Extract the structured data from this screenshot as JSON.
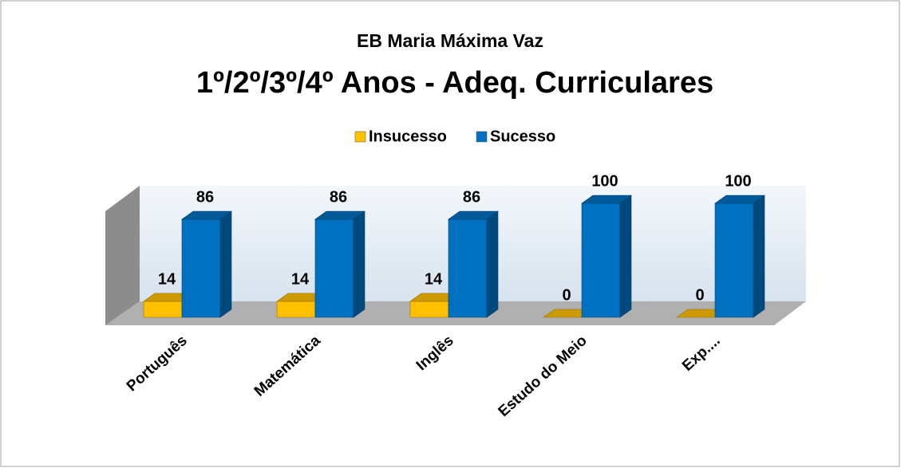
{
  "chart_data": {
    "type": "bar3d",
    "title": "EB Maria Máxima Vaz",
    "subtitle": "1º/2º/3º/4º Anos - Adeq. Curriculares",
    "categories": [
      "Português",
      "Matemática",
      "Inglês",
      "Estudo do Meio",
      "Exp...."
    ],
    "series": [
      {
        "name": "Insucesso",
        "color": "#ffc000",
        "values": [
          14,
          14,
          14,
          0,
          0
        ]
      },
      {
        "name": "Sucesso",
        "color": "#0070c0",
        "values": [
          86,
          86,
          86,
          100,
          100
        ]
      }
    ],
    "legend": "top"
  }
}
